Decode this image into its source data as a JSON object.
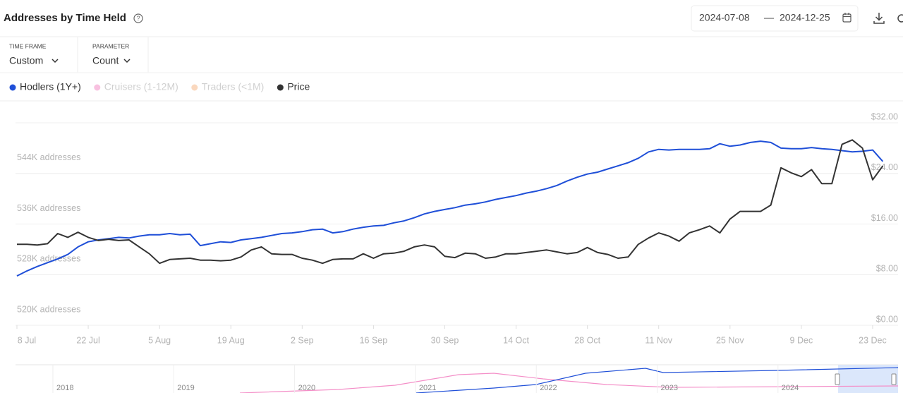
{
  "header": {
    "title": "Addresses by Time Held",
    "date_from": "2024-07-08",
    "date_separator": "—",
    "date_to": "2024-12-25",
    "filters": [
      {
        "label": "TIME FRAME",
        "value": "Custom"
      },
      {
        "label": "PARAMETER",
        "value": "Count"
      }
    ]
  },
  "chart_data": {
    "type": "line",
    "categories": [
      "8 Jul",
      null,
      null,
      null,
      null,
      null,
      null,
      "22 Jul",
      null,
      null,
      null,
      null,
      null,
      null,
      "5 Aug",
      null,
      null,
      null,
      null,
      null,
      null,
      "19 Aug",
      null,
      null,
      null,
      null,
      null,
      null,
      "2 Sep",
      null,
      null,
      null,
      null,
      null,
      null,
      "16 Sep",
      null,
      null,
      null,
      null,
      null,
      null,
      "30 Sep",
      null,
      null,
      null,
      null,
      null,
      null,
      "14 Oct",
      null,
      null,
      null,
      null,
      null,
      null,
      "28 Oct",
      null,
      null,
      null,
      null,
      null,
      null,
      "11 Nov",
      null,
      null,
      null,
      null,
      null,
      null,
      "25 Nov",
      null,
      null,
      null,
      null,
      null,
      null,
      "9 Dec",
      null,
      null,
      null,
      null,
      null,
      null,
      "23 Dec",
      null
    ],
    "series": [
      {
        "name": "Hodlers (1Y+)",
        "color": "#1f4fd8",
        "visible": true,
        "values": [
          526900,
          527700,
          528400,
          529000,
          529600,
          530300,
          531500,
          532300,
          532600,
          532800,
          533000,
          532900,
          533200,
          533400,
          533400,
          533600,
          533400,
          533500,
          531700,
          532000,
          532300,
          532200,
          532600,
          532800,
          533000,
          533300,
          533600,
          533700,
          533900,
          534200,
          534300,
          533700,
          533900,
          534300,
          534600,
          534800,
          534900,
          535300,
          535600,
          536100,
          536700,
          537100,
          537400,
          537700,
          538100,
          538300,
          538600,
          539000,
          539300,
          539600,
          540000,
          540300,
          540700,
          541200,
          541900,
          542500,
          543000,
          543300,
          543800,
          544300,
          544800,
          545500,
          546500,
          546900,
          546800,
          546900,
          546900,
          546900,
          547000,
          547800,
          547400,
          547600,
          548000,
          548200,
          548000,
          547100,
          547000,
          547000,
          547200,
          547000,
          546900,
          546700,
          546500,
          546600,
          546800,
          545000
        ]
      },
      {
        "name": "Cruisers (1-12M)",
        "color": "#f48fc8",
        "visible": false
      },
      {
        "name": "Traders (<1M)",
        "color": "#f7b98a",
        "visible": false
      },
      {
        "name": "Price",
        "color": "#333333",
        "visible": true,
        "axis": "y2",
        "values": [
          11.9,
          11.9,
          11.8,
          12.0,
          13.6,
          13.0,
          13.8,
          13.0,
          12.5,
          12.7,
          12.5,
          12.6,
          11.5,
          10.4,
          8.9,
          9.5,
          9.6,
          9.7,
          9.4,
          9.4,
          9.3,
          9.4,
          9.9,
          11.0,
          11.5,
          10.4,
          10.3,
          10.3,
          9.7,
          9.4,
          8.9,
          9.5,
          9.6,
          9.6,
          10.4,
          9.7,
          10.4,
          10.5,
          10.8,
          11.5,
          11.8,
          11.5,
          10.0,
          9.8,
          10.5,
          10.4,
          9.7,
          9.9,
          10.4,
          10.4,
          10.6,
          10.8,
          11.0,
          10.7,
          10.4,
          10.6,
          11.4,
          10.6,
          10.3,
          9.7,
          9.9,
          11.9,
          12.9,
          13.7,
          13.2,
          12.4,
          13.7,
          14.2,
          14.8,
          13.7,
          15.9,
          17.1,
          17.1,
          17.1,
          18.1,
          24.0,
          23.2,
          22.6,
          23.7,
          21.5,
          21.5,
          27.7,
          28.4,
          27.1,
          22.1,
          24.3
        ]
      }
    ],
    "ylim": [
      520000,
      552000
    ],
    "yticks": [
      {
        "value": 520000,
        "label": "520K addresses"
      },
      {
        "value": 528000,
        "label": "528K addresses"
      },
      {
        "value": 536000,
        "label": "536K addresses"
      },
      {
        "value": 544000,
        "label": "544K addresses"
      }
    ],
    "y2lim": [
      0,
      32
    ],
    "y2ticks": [
      {
        "value": 0,
        "label": "$0.00"
      },
      {
        "value": 8,
        "label": "$8.00"
      },
      {
        "value": 16,
        "label": "$16.00"
      },
      {
        "value": 24,
        "label": "$24.00"
      },
      {
        "value": 32,
        "label": "$32.00"
      }
    ],
    "grid": true
  },
  "navigator": {
    "labels": [
      "2018",
      "2019",
      "2020",
      "2021",
      "2022",
      "2023",
      "2024"
    ]
  }
}
